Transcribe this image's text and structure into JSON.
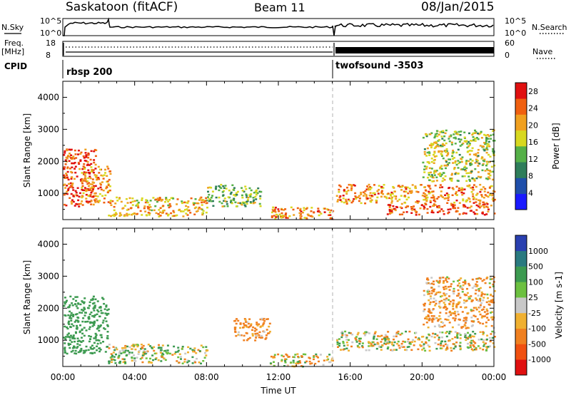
{
  "header": {
    "title": "Saskatoon (fitACF)",
    "beam": "Beam 11",
    "date": "08/Jan/2015"
  },
  "top_panels": {
    "nsky_label": "N.Sky",
    "nsearch_label": "N.Search",
    "nsky_ticks": [
      "10^5",
      "10^0"
    ],
    "freq_label": "Freq.",
    "freq_unit": "[MHz]",
    "freq_ticks": [
      "18",
      "8"
    ],
    "nave_label": "Nave",
    "nave_ticks": [
      "60",
      "0"
    ],
    "cpid_label": "CPID",
    "cpid_segments": [
      {
        "name": "rbsp 200",
        "start_hour": 0
      },
      {
        "name": "twofsound -3503",
        "start_hour": 15
      }
    ]
  },
  "chart_data": [
    {
      "type": "heatmap",
      "title": "",
      "xlabel": "Time UT",
      "ylabel": "Slant Range [km]",
      "xlim": [
        0,
        24
      ],
      "ylim": [
        180,
        4500
      ],
      "x_ticks": [
        "00:00",
        "04:00",
        "08:00",
        "12:00",
        "16:00",
        "20:00",
        "00:00"
      ],
      "y_ticks": [
        1000,
        2000,
        3000,
        4000
      ],
      "colorbar": {
        "label": "Power [dB]",
        "ticks": [
          4,
          8,
          12,
          16,
          20,
          24,
          28
        ],
        "range": [
          0,
          30
        ],
        "colors": [
          "#1a1aff",
          "#1f4faa",
          "#2e7d5a",
          "#55b048",
          "#d8d820",
          "#f0a020",
          "#f06010",
          "#e01010"
        ]
      },
      "regions": [
        {
          "t": [
            0.0,
            1.8
          ],
          "r": [
            600,
            2400
          ],
          "value": 26
        },
        {
          "t": [
            1.0,
            2.6
          ],
          "r": [
            700,
            1900
          ],
          "value": 22
        },
        {
          "t": [
            2.5,
            8.0
          ],
          "r": [
            300,
            900
          ],
          "value": 20
        },
        {
          "t": [
            8.0,
            11.0
          ],
          "r": [
            600,
            1300
          ],
          "value": 14
        },
        {
          "t": [
            11.5,
            15.0
          ],
          "r": [
            200,
            600
          ],
          "value": 22
        },
        {
          "t": [
            15.2,
            24.0
          ],
          "r": [
            700,
            1300
          ],
          "value": 22
        },
        {
          "t": [
            18.0,
            24.0
          ],
          "r": [
            350,
            700
          ],
          "value": 26
        },
        {
          "t": [
            20.0,
            24.0
          ],
          "r": [
            1400,
            3000
          ],
          "value": 16
        }
      ]
    },
    {
      "type": "heatmap",
      "title": "",
      "xlabel": "Time UT",
      "ylabel": "Slant Range [km]",
      "xlim": [
        0,
        24
      ],
      "ylim": [
        180,
        4500
      ],
      "x_ticks": [
        "00:00",
        "04:00",
        "08:00",
        "12:00",
        "16:00",
        "20:00",
        "00:00"
      ],
      "y_ticks": [
        1000,
        2000,
        3000,
        4000
      ],
      "colorbar": {
        "label": "Velocity [m s-1]",
        "ticks": [
          "1000",
          "500",
          "100",
          "25",
          "-25",
          "-100",
          "-500",
          "-1000"
        ],
        "colors": [
          "#2a40b0",
          "#2a7a80",
          "#3c9a50",
          "#6cc040",
          "#c8c8c8",
          "#f0b030",
          "#f08020",
          "#f05010",
          "#e01010"
        ]
      },
      "regions": [
        {
          "t": [
            0.0,
            2.5
          ],
          "r": [
            600,
            2400
          ],
          "value": 300
        },
        {
          "t": [
            2.5,
            8.0
          ],
          "r": [
            300,
            900
          ],
          "value": 40
        },
        {
          "t": [
            9.5,
            11.5
          ],
          "r": [
            1000,
            1700
          ],
          "value": -200
        },
        {
          "t": [
            11.5,
            15.0
          ],
          "r": [
            200,
            600
          ],
          "value": -60
        },
        {
          "t": [
            15.2,
            24.0
          ],
          "r": [
            700,
            1300
          ],
          "value": 0
        },
        {
          "t": [
            20.0,
            24.0
          ],
          "r": [
            1400,
            3000
          ],
          "value": -150
        }
      ]
    }
  ]
}
